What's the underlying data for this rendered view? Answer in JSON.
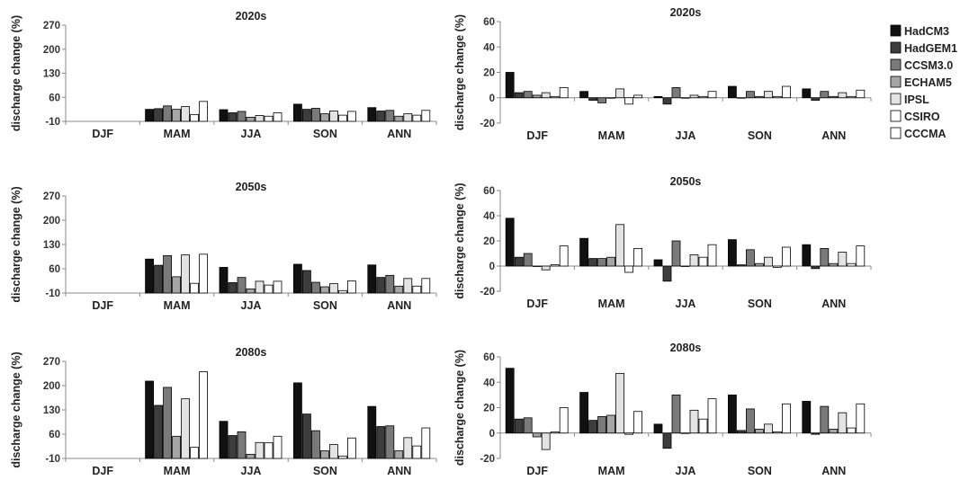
{
  "chart_data": {
    "type": "bar",
    "categories": [
      "DJF",
      "MAM",
      "JJA",
      "SON",
      "ANN"
    ],
    "legend": {
      "position": "right",
      "entries": [
        {
          "name": "HadCM3",
          "color": "#111111"
        },
        {
          "name": "HadGEM1",
          "color": "#3d3d3d"
        },
        {
          "name": "CCSM3.0",
          "color": "#7a7a7a"
        },
        {
          "name": "ECHAM5",
          "color": "#a6a6a6"
        },
        {
          "name": "IPSL",
          "color": "#e3e3e3"
        },
        {
          "name": "CSIRO",
          "color": "#ffffff"
        },
        {
          "name": "CCCMA",
          "color": "#ffffff"
        }
      ]
    },
    "panels": [
      {
        "id": "left-2020s",
        "title": "2020s",
        "ylabel": "discharge change (%)",
        "ylim": [
          -10,
          270
        ],
        "yticks": [
          -10,
          60,
          130,
          200,
          270
        ],
        "series": [
          {
            "name": "HadCM3",
            "values": [
              null,
              25,
              24,
              40,
              30
            ]
          },
          {
            "name": "HadGEM1",
            "values": [
              null,
              27,
              15,
              25,
              20
            ]
          },
          {
            "name": "CCSM3.0",
            "values": [
              null,
              35,
              19,
              28,
              22
            ]
          },
          {
            "name": "ECHAM5",
            "values": [
              null,
              25,
              2,
              12,
              5
            ]
          },
          {
            "name": "IPSL",
            "values": [
              null,
              33,
              7,
              20,
              12
            ]
          },
          {
            "name": "CSIRO",
            "values": [
              null,
              10,
              5,
              8,
              8
            ]
          },
          {
            "name": "CCCMA",
            "values": [
              null,
              48,
              15,
              19,
              22
            ]
          }
        ]
      },
      {
        "id": "right-2020s",
        "title": "2020s",
        "ylabel": "discharge change (%)",
        "ylim": [
          -20,
          60
        ],
        "yticks": [
          -20,
          0,
          20,
          40,
          60
        ],
        "series": [
          {
            "name": "HadCM3",
            "values": [
              20,
              5,
              1,
              9,
              7
            ]
          },
          {
            "name": "HadGEM1",
            "values": [
              4,
              -2,
              -5,
              0,
              -2
            ]
          },
          {
            "name": "CCSM3.0",
            "values": [
              5,
              -4,
              8,
              5,
              5
            ]
          },
          {
            "name": "ECHAM5",
            "values": [
              2,
              0,
              0,
              1,
              1
            ]
          },
          {
            "name": "IPSL",
            "values": [
              4,
              7,
              2,
              5,
              4
            ]
          },
          {
            "name": "CSIRO",
            "values": [
              1,
              -5,
              1,
              1,
              1
            ]
          },
          {
            "name": "CCCMA",
            "values": [
              8,
              2,
              5,
              9,
              6
            ]
          }
        ]
      },
      {
        "id": "left-2050s",
        "title": "2050s",
        "ylabel": "discharge change (%)",
        "ylim": [
          -10,
          270
        ],
        "yticks": [
          -10,
          60,
          130,
          200,
          270
        ],
        "series": [
          {
            "name": "HadCM3",
            "values": [
              null,
              88,
              64,
              73,
              71
            ]
          },
          {
            "name": "HadGEM1",
            "values": [
              null,
              70,
              20,
              55,
              35
            ]
          },
          {
            "name": "CCSM3.0",
            "values": [
              null,
              98,
              35,
              21,
              41
            ]
          },
          {
            "name": "ECHAM5",
            "values": [
              null,
              37,
              2,
              8,
              10
            ]
          },
          {
            "name": "IPSL",
            "values": [
              null,
              100,
              24,
              17,
              32
            ]
          },
          {
            "name": "CSIRO",
            "values": [
              null,
              18,
              13,
              -3,
              10
            ]
          },
          {
            "name": "CCCMA",
            "values": [
              null,
              102,
              24,
              25,
              32
            ]
          }
        ]
      },
      {
        "id": "right-2050s",
        "title": "2050s",
        "ylabel": "discharge change (%)",
        "ylim": [
          -20,
          60
        ],
        "yticks": [
          -20,
          0,
          20,
          40,
          60
        ],
        "series": [
          {
            "name": "HadCM3",
            "values": [
              38,
              22,
              5,
              21,
              17
            ]
          },
          {
            "name": "HadGEM1",
            "values": [
              7,
              6,
              -12,
              1,
              -2
            ]
          },
          {
            "name": "CCSM3.0",
            "values": [
              10,
              6,
              20,
              13,
              14
            ]
          },
          {
            "name": "ECHAM5",
            "values": [
              0,
              7,
              0,
              2,
              2
            ]
          },
          {
            "name": "IPSL",
            "values": [
              -3,
              33,
              9,
              7,
              11
            ]
          },
          {
            "name": "CSIRO",
            "values": [
              1,
              -5,
              7,
              -1,
              2
            ]
          },
          {
            "name": "CCCMA",
            "values": [
              16,
              14,
              17,
              15,
              16
            ]
          }
        ]
      },
      {
        "id": "left-2080s",
        "title": "2080s",
        "ylabel": "discharge change (%)",
        "ylim": [
          -10,
          270
        ],
        "yticks": [
          -10,
          60,
          130,
          200,
          270
        ],
        "series": [
          {
            "name": "HadCM3",
            "values": [
              null,
              213,
              97,
              208,
              140
            ]
          },
          {
            "name": "HadGEM1",
            "values": [
              null,
              143,
              56,
              118,
              82
            ]
          },
          {
            "name": "CCSM3.0",
            "values": [
              null,
              195,
              67,
              70,
              84
            ]
          },
          {
            "name": "ECHAM5",
            "values": [
              null,
              54,
              2,
              12,
              12
            ]
          },
          {
            "name": "IPSL",
            "values": [
              null,
              162,
              36,
              30,
              50
            ]
          },
          {
            "name": "CSIRO",
            "values": [
              null,
              22,
              35,
              -3,
              26
            ]
          },
          {
            "name": "CCCMA",
            "values": [
              null,
              240,
              54,
              49,
              78
            ]
          }
        ]
      },
      {
        "id": "right-2080s",
        "title": "2080s",
        "ylabel": "discharge change (%)",
        "ylim": [
          -20,
          60
        ],
        "yticks": [
          -20,
          0,
          20,
          40,
          60
        ],
        "series": [
          {
            "name": "HadCM3",
            "values": [
              51,
              32,
              7,
              30,
              25
            ]
          },
          {
            "name": "HadGEM1",
            "values": [
              11,
              10,
              -12,
              2,
              -1
            ]
          },
          {
            "name": "CCSM3.0",
            "values": [
              12,
              13,
              30,
              19,
              21
            ]
          },
          {
            "name": "ECHAM5",
            "values": [
              -3,
              14,
              0,
              3,
              3
            ]
          },
          {
            "name": "IPSL",
            "values": [
              -13,
              47,
              18,
              7,
              16
            ]
          },
          {
            "name": "CSIRO",
            "values": [
              1,
              -1,
              11,
              1,
              4
            ]
          },
          {
            "name": "CCCMA",
            "values": [
              20,
              17,
              27,
              23,
              23
            ]
          }
        ]
      }
    ]
  }
}
